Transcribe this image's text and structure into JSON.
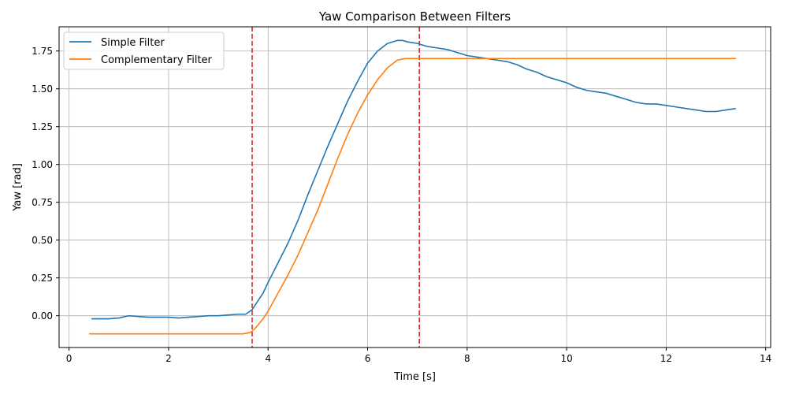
{
  "chart_data": {
    "type": "line",
    "title": "Yaw Comparison Between Filters",
    "xlabel": "Time [s]",
    "ylabel": "Yaw [rad]",
    "xlim": [
      -0.2,
      14.1
    ],
    "ylim": [
      -0.21,
      1.91
    ],
    "xticks": [
      0,
      2,
      4,
      6,
      8,
      10,
      12,
      14
    ],
    "xtick_labels": [
      "0",
      "2",
      "4",
      "6",
      "8",
      "10",
      "12",
      "14"
    ],
    "yticks": [
      0.0,
      0.25,
      0.5,
      0.75,
      1.0,
      1.25,
      1.5,
      1.75
    ],
    "ytick_labels": [
      "0.00",
      "0.25",
      "0.50",
      "0.75",
      "1.00",
      "1.25",
      "1.50",
      "1.75"
    ],
    "grid": true,
    "legend": "top-left",
    "vlines": [
      {
        "x": 3.68,
        "color": "#d62728",
        "style": "dashed"
      },
      {
        "x": 7.04,
        "color": "#d62728",
        "style": "dashed"
      }
    ],
    "series": [
      {
        "name": "Simple Filter",
        "color": "#1f77b4",
        "x": [
          0.45,
          0.6,
          0.8,
          1.0,
          1.2,
          1.4,
          1.6,
          1.8,
          2.0,
          2.2,
          2.4,
          2.6,
          2.8,
          3.0,
          3.2,
          3.4,
          3.55,
          3.68,
          3.8,
          3.9,
          4.0,
          4.2,
          4.4,
          4.6,
          4.8,
          5.0,
          5.2,
          5.4,
          5.6,
          5.8,
          6.0,
          6.2,
          6.4,
          6.6,
          6.7,
          6.8,
          7.0,
          7.2,
          7.4,
          7.6,
          7.8,
          8.0,
          8.2,
          8.4,
          8.6,
          8.8,
          9.0,
          9.2,
          9.4,
          9.6,
          9.8,
          10.0,
          10.2,
          10.4,
          10.6,
          10.8,
          11.0,
          11.2,
          11.4,
          11.6,
          11.8,
          12.0,
          12.2,
          12.4,
          12.6,
          12.8,
          13.0,
          13.2,
          13.4
        ],
        "y": [
          -0.02,
          -0.02,
          -0.02,
          -0.015,
          0.0,
          -0.005,
          -0.01,
          -0.01,
          -0.01,
          -0.015,
          -0.01,
          -0.005,
          0.0,
          0.0,
          0.005,
          0.01,
          0.01,
          0.04,
          0.1,
          0.15,
          0.22,
          0.35,
          0.48,
          0.63,
          0.8,
          0.96,
          1.12,
          1.27,
          1.42,
          1.55,
          1.67,
          1.75,
          1.8,
          1.82,
          1.82,
          1.81,
          1.8,
          1.78,
          1.77,
          1.76,
          1.74,
          1.72,
          1.71,
          1.7,
          1.69,
          1.68,
          1.66,
          1.63,
          1.61,
          1.58,
          1.56,
          1.54,
          1.51,
          1.49,
          1.48,
          1.47,
          1.45,
          1.43,
          1.41,
          1.4,
          1.4,
          1.39,
          1.38,
          1.37,
          1.36,
          1.35,
          1.35,
          1.36,
          1.37
        ]
      },
      {
        "name": "Complementary Filter",
        "color": "#ff7f0e",
        "x": [
          0.4,
          1.0,
          2.0,
          3.0,
          3.5,
          3.65,
          3.75,
          3.9,
          4.0,
          4.2,
          4.4,
          4.6,
          4.8,
          5.0,
          5.2,
          5.4,
          5.6,
          5.8,
          6.0,
          6.2,
          6.4,
          6.6,
          6.75,
          7.0,
          8.0,
          9.0,
          10.0,
          11.0,
          12.0,
          13.0,
          13.4
        ],
        "y": [
          -0.12,
          -0.12,
          -0.12,
          -0.12,
          -0.12,
          -0.11,
          -0.08,
          -0.02,
          0.03,
          0.15,
          0.27,
          0.4,
          0.55,
          0.7,
          0.87,
          1.04,
          1.2,
          1.34,
          1.46,
          1.56,
          1.64,
          1.69,
          1.7,
          1.7,
          1.7,
          1.7,
          1.7,
          1.7,
          1.7,
          1.7,
          1.7
        ]
      }
    ]
  }
}
